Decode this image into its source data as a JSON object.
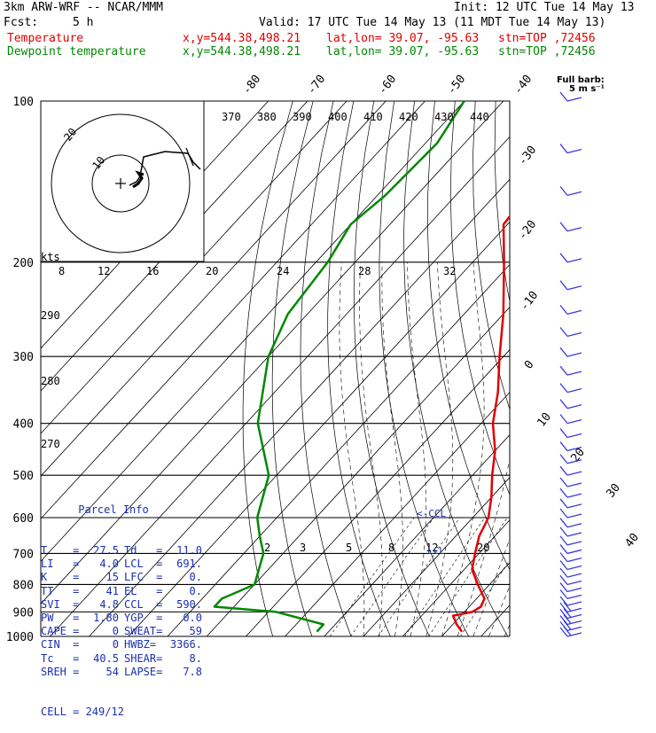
{
  "header": {
    "model": "3km ARW-WRF -- NCAR/MMM",
    "init": "Init: 12 UTC Tue 14 May 13",
    "fcst_label": "Fcst:",
    "fcst_value": "5 h",
    "valid": "Valid: 17 UTC Tue 14 May 13 (11 MDT Tue 14 May 13)",
    "temp_label": "Temperature",
    "dew_label": "Dewpoint temperature",
    "xy": "x,y=544.38,498.21",
    "latlon": "lat,lon= 39.07, -95.63",
    "stn": "stn=TOP ,72456"
  },
  "colors": {
    "temperature": "#e00000",
    "dewpoint": "#008800",
    "parcel_text": "#1a2fb0",
    "barbs": "#3a3adc",
    "hodo": "#000000"
  },
  "barb_legend": {
    "line1": "Full barb:",
    "line2": "5 m s⁻¹"
  },
  "hodograph": {
    "units": "kts",
    "ring_labels": [
      "10",
      "20"
    ]
  },
  "parcel_info": {
    "title": "Parcel Info",
    "rows": [
      [
        "T    =",
        "27.5",
        "Td   =",
        "11.0"
      ],
      [
        "LI   =",
        "4.0",
        "LCL  =",
        "691."
      ],
      [
        "K    =",
        "15",
        "LFC  =",
        "0."
      ],
      [
        "TT   =",
        "41",
        "EL   =",
        "0."
      ],
      [
        "SVI  =",
        "4.8",
        "CCL  =",
        "590."
      ],
      [
        "PW   =",
        "1.80",
        "YGP  =",
        "0.0"
      ],
      [
        "CAPE =",
        "0",
        "SWEAT=",
        "59"
      ],
      [
        "CIN  =",
        "0",
        "HWBZ=",
        "3366."
      ],
      [
        "Tc   =",
        "40.5",
        "SHEAR=",
        "8."
      ],
      [
        "SREH =",
        "54",
        "LAPSE=",
        "7.8"
      ]
    ],
    "cell": "CELL = 249/12"
  },
  "chart_data": {
    "type": "line",
    "title": "",
    "xlabel": "",
    "ylabel": "",
    "y_scale": "log-pressure",
    "pressure_labels": [
      "100",
      "200",
      "300",
      "400",
      "500",
      "600",
      "700",
      "800",
      "900",
      "1000"
    ],
    "isotherm_labels": [
      "-80",
      "-70",
      "-60",
      "-50",
      "-40",
      "-30",
      "-20",
      "-10",
      "0",
      "10",
      "20",
      "30",
      "40"
    ],
    "isentrope_labels_top": [
      "370",
      "380",
      "390",
      "400",
      "410",
      "420",
      "430",
      "440"
    ],
    "isentrope_labels_left": [
      "290",
      "280",
      "270"
    ],
    "upper_row_labels": [
      "8",
      "12",
      "16",
      "20",
      "24",
      "28",
      "32"
    ],
    "mixing_ratio_labels": [
      "2",
      "3",
      "5",
      "8",
      "12",
      "20"
    ],
    "level_labels": [
      "LCL",
      "<-CCL"
    ],
    "series": [
      {
        "name": "Temperature",
        "points": [
          [
            100,
            -73
          ],
          [
            150,
            -62
          ],
          [
            170,
            -61
          ],
          [
            200,
            -52
          ],
          [
            250,
            -40
          ],
          [
            300,
            -31
          ],
          [
            350,
            -23
          ],
          [
            400,
            -17
          ],
          [
            450,
            -10
          ],
          [
            500,
            -5
          ],
          [
            550,
            0
          ],
          [
            600,
            4
          ],
          [
            650,
            6
          ],
          [
            700,
            9
          ],
          [
            750,
            12
          ],
          [
            800,
            17
          ],
          [
            850,
            22
          ],
          [
            880,
            23
          ],
          [
            900,
            22
          ],
          [
            915,
            18
          ],
          [
            950,
            21
          ],
          [
            980,
            24
          ]
        ]
      },
      {
        "name": "Dewpoint temperature",
        "points": [
          [
            100,
            -100
          ],
          [
            120,
            -97
          ],
          [
            150,
            -98
          ],
          [
            170,
            -100
          ],
          [
            200,
            -97
          ],
          [
            250,
            -95
          ],
          [
            300,
            -90
          ],
          [
            400,
            -77
          ],
          [
            500,
            -62
          ],
          [
            600,
            -55
          ],
          [
            650,
            -50
          ],
          [
            700,
            -45
          ],
          [
            800,
            -40
          ],
          [
            850,
            -45
          ],
          [
            880,
            -45
          ],
          [
            900,
            -28
          ],
          [
            950,
            -13
          ],
          [
            980,
            -13
          ]
        ]
      }
    ],
    "wind_profile": {
      "note": "wind barbs shown along right edge from 100 to 1000 hPa",
      "levels": [
        100,
        125,
        150,
        175,
        200,
        225,
        250,
        275,
        300,
        325,
        350,
        375,
        400,
        425,
        450,
        475,
        500,
        525,
        550,
        575,
        600,
        625,
        650,
        675,
        700,
        725,
        750,
        775,
        800,
        825,
        850,
        875,
        900,
        925,
        950,
        975,
        1000
      ]
    }
  }
}
